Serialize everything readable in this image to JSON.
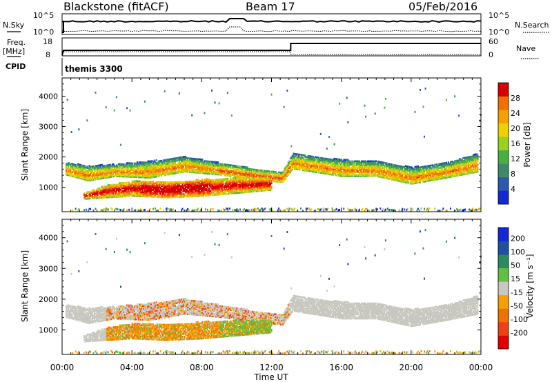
{
  "header": {
    "radar": "Blackstone (fitACF)",
    "beam": "Beam 17",
    "date": "05/Feb/2016"
  },
  "top_panels": {
    "nsky_label": "N.Sky",
    "nsearch_label": "N.Search",
    "sky_ticks": [
      "10^5",
      "10^0"
    ],
    "freq_label_1": "Freq.",
    "freq_label_2": "[MHz]",
    "freq_ticks": [
      "18",
      "8"
    ],
    "nave_label": "Nave",
    "nave_ticks": [
      "60",
      "0"
    ],
    "cpid_label": "CPID",
    "cpid_value": "themis 3300"
  },
  "colors": {
    "power": [
      "#1428d8",
      "#2b58b0",
      "#3c8a6a",
      "#46b040",
      "#9ad020",
      "#f0d000",
      "#f5a000",
      "#f07000",
      "#e83010",
      "#d80000"
    ],
    "velocity": [
      "#e00000",
      "#f04010",
      "#f07000",
      "#f5a000",
      "#c8c8c0",
      "#c8c8c0",
      "#60c040",
      "#2a8a60",
      "#2050a0",
      "#1428d8"
    ]
  },
  "chart_data": [
    {
      "type": "heatmap",
      "title": "Power",
      "xlabel": "Time UT",
      "ylabel": "Slant Range [km]",
      "x_ticks": [
        "00:00",
        "04:00",
        "08:00",
        "12:00",
        "16:00",
        "20:00",
        "00:00"
      ],
      "xlim_hours": [
        0,
        24
      ],
      "y_ticks": [
        1000,
        2000,
        3000,
        4000
      ],
      "ylim": [
        200,
        4600
      ],
      "colorbar_label": "Power [dB]",
      "colorbar_ticks": [
        "4",
        "8",
        "12",
        "16",
        "20",
        "24",
        "28"
      ],
      "colorbar_range": [
        0,
        30
      ],
      "bands": [
        {
          "name": "main",
          "points": [
            [
              0.2,
              1400,
              1800
            ],
            [
              1.5,
              1200,
              1700
            ],
            [
              3,
              1350,
              1750
            ],
            [
              5,
              1300,
              1850
            ],
            [
              7,
              1500,
              2000
            ],
            [
              9,
              1400,
              1800
            ],
            [
              11,
              1250,
              1600
            ],
            [
              12.6,
              1150,
              1500
            ],
            [
              13.2,
              1600,
              2100
            ],
            [
              16,
              1350,
              1900
            ],
            [
              18,
              1350,
              1850
            ],
            [
              20,
              1100,
              1650
            ],
            [
              22,
              1300,
              1800
            ],
            [
              23.8,
              1500,
              2100
            ]
          ]
        },
        {
          "name": "lower",
          "points": [
            [
              1.2,
              600,
              800
            ],
            [
              2.5,
              650,
              1050
            ],
            [
              4,
              700,
              1200
            ],
            [
              6,
              650,
              1150
            ],
            [
              8,
              700,
              1250
            ],
            [
              10,
              800,
              1300
            ],
            [
              12,
              900,
              1300
            ]
          ]
        }
      ]
    },
    {
      "type": "heatmap",
      "title": "Velocity",
      "xlabel": "Time UT",
      "ylabel": "Slant Range [km]",
      "x_ticks": [
        "00:00",
        "04:00",
        "08:00",
        "12:00",
        "16:00",
        "20:00",
        "00:00"
      ],
      "xlim_hours": [
        0,
        24
      ],
      "y_ticks": [
        1000,
        2000,
        3000,
        4000
      ],
      "ylim": [
        200,
        4600
      ],
      "colorbar_label": "Velocity [m s⁻¹]",
      "colorbar_ticks": [
        "200",
        "100",
        "50",
        "15",
        "-15",
        "-50",
        "-100",
        "-200"
      ],
      "colorbar_range": [
        -250,
        250
      ]
    }
  ]
}
